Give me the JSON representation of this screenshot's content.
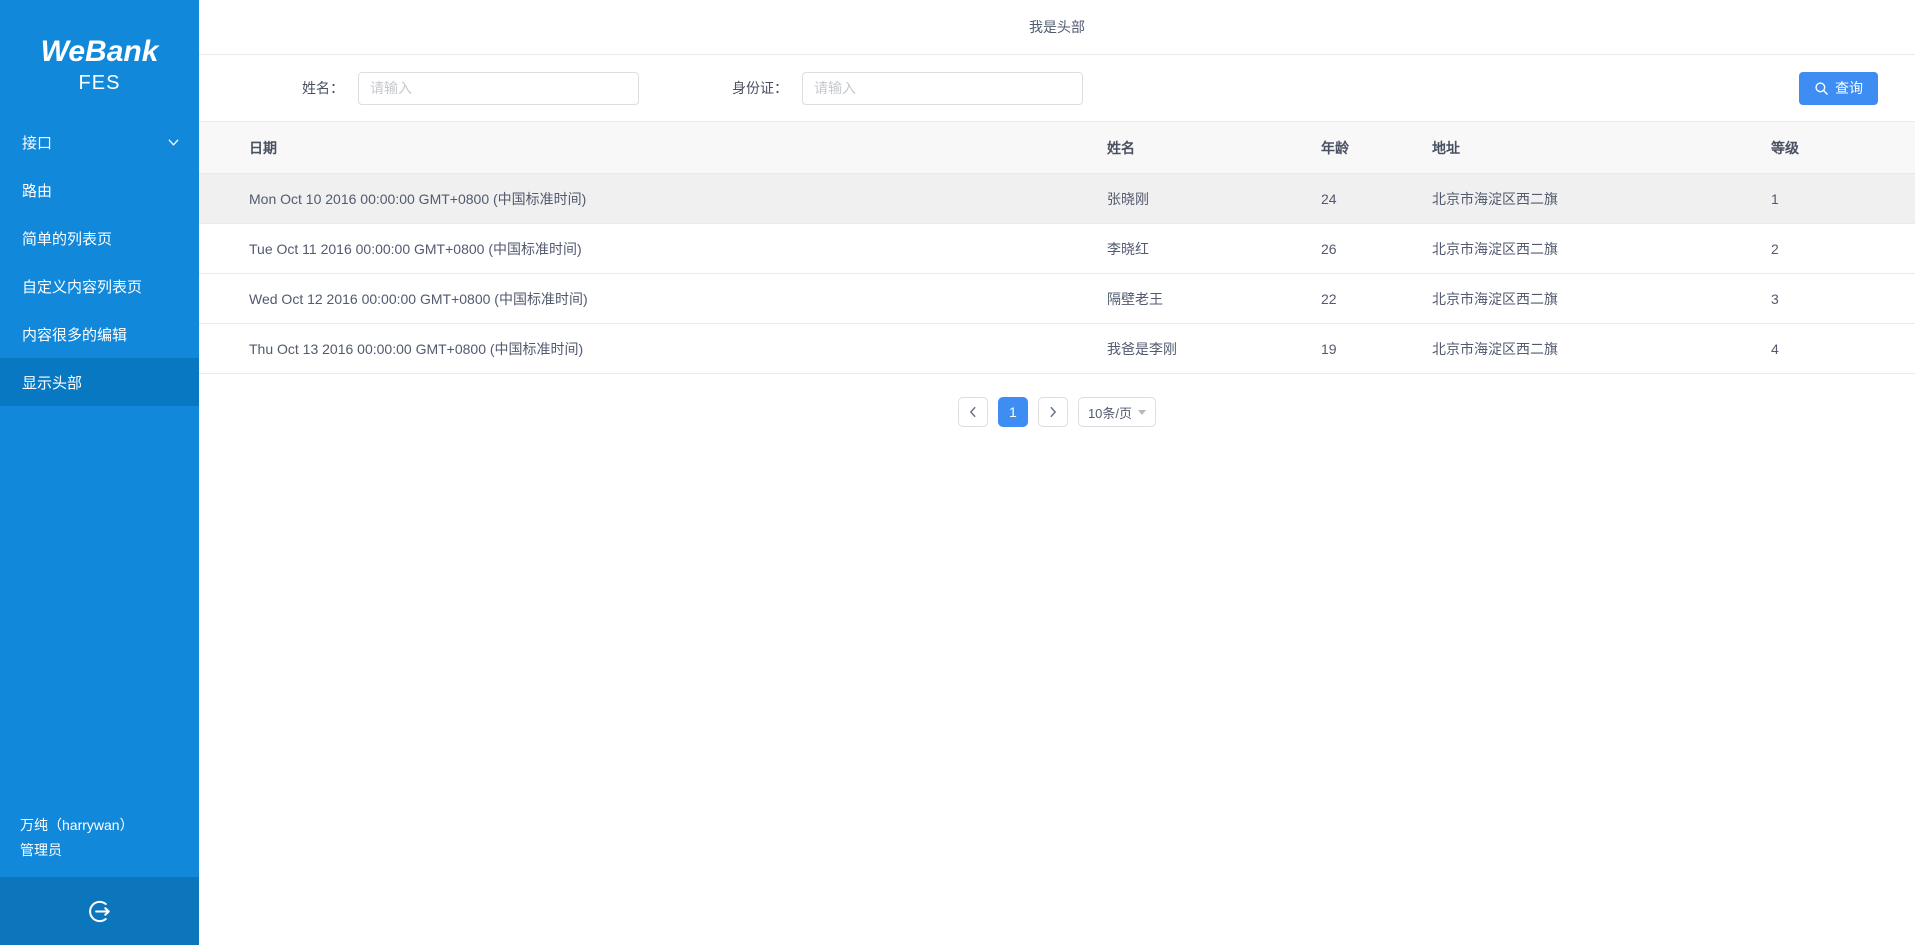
{
  "colors": {
    "sidebar-bg": "#1188da",
    "sidebar-active-bg": "#0878c3",
    "sidebar-footer-bg": "#0c76bd",
    "primary": "#3d8df2"
  },
  "sidebar": {
    "logo_title": "WeBank",
    "logo_subtitle": "FES",
    "menu": [
      {
        "key": "interface",
        "label": "接口",
        "has_children": true,
        "active": false
      },
      {
        "key": "route",
        "label": "路由",
        "has_children": false,
        "active": false
      },
      {
        "key": "simple-list",
        "label": "简单的列表页",
        "has_children": false,
        "active": false
      },
      {
        "key": "custom-list",
        "label": "自定义内容列表页",
        "has_children": false,
        "active": false
      },
      {
        "key": "rich-edit",
        "label": "内容很多的编辑",
        "has_children": false,
        "active": false
      },
      {
        "key": "show-header",
        "label": "显示头部",
        "has_children": false,
        "active": true
      }
    ],
    "user": {
      "name": "万纯（harrywan）",
      "role": "管理员"
    }
  },
  "header": {
    "title": "我是头部"
  },
  "search": {
    "name_label": "姓名：",
    "name_placeholder": "请输入",
    "id_label": "身份证：",
    "id_placeholder": "请输入",
    "search_button": "查询"
  },
  "table": {
    "columns": [
      "日期",
      "姓名",
      "年龄",
      "地址",
      "等级"
    ],
    "rows": [
      [
        "Mon Oct 10 2016 00:00:00 GMT+0800 (中国标准时间)",
        "张晓刚",
        "24",
        "北京市海淀区西二旗",
        "1"
      ],
      [
        "Tue Oct 11 2016 00:00:00 GMT+0800 (中国标准时间)",
        "李晓红",
        "26",
        "北京市海淀区西二旗",
        "2"
      ],
      [
        "Wed Oct 12 2016 00:00:00 GMT+0800 (中国标准时间)",
        "隔壁老王",
        "22",
        "北京市海淀区西二旗",
        "3"
      ],
      [
        "Thu Oct 13 2016 00:00:00 GMT+0800 (中国标准时间)",
        "我爸是李刚",
        "19",
        "北京市海淀区西二旗",
        "4"
      ]
    ],
    "highlighted_row_index": 0
  },
  "pagination": {
    "current_page": "1",
    "page_size_label": "10条/页"
  },
  "icons": {
    "menu_expand": "chevron-down-icon",
    "logout": "logout-icon",
    "search": "magnifier-icon",
    "prev_page": "chevron-left-icon",
    "next_page": "chevron-right-icon",
    "page_size_caret": "caret-down-icon"
  }
}
